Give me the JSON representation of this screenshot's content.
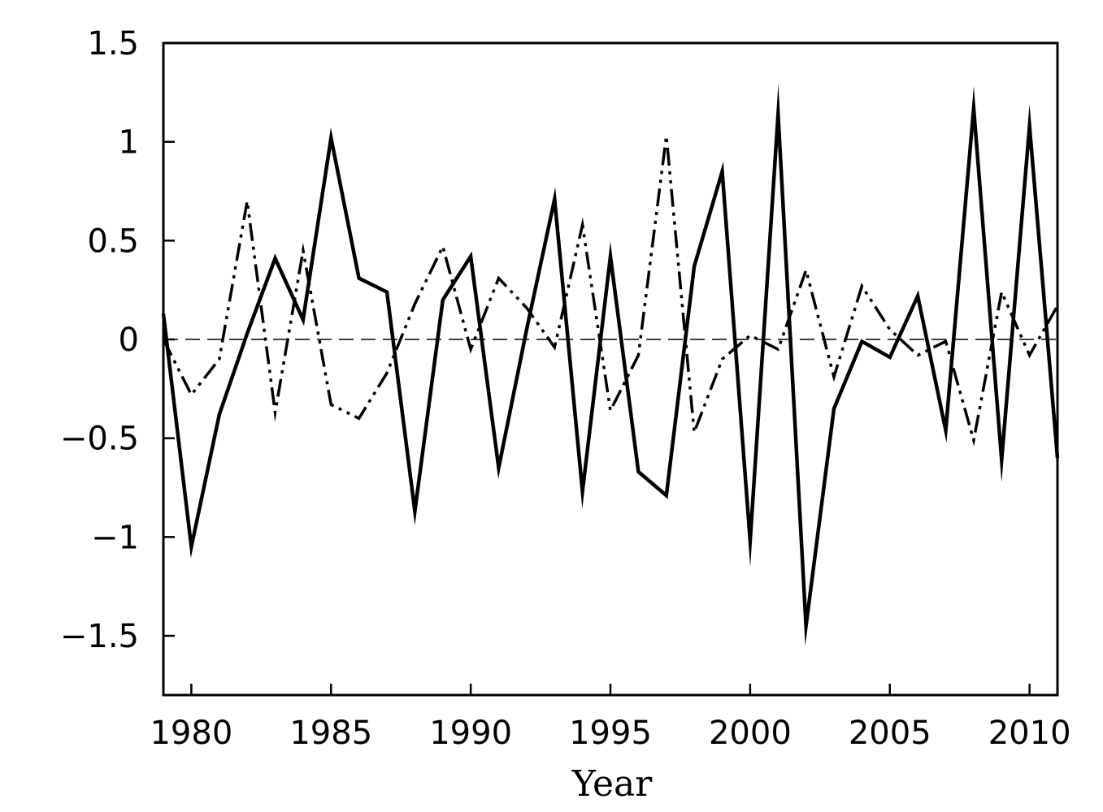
{
  "chart_data": {
    "type": "line",
    "xlabel": "Year",
    "ylabel": "",
    "title": "",
    "xlim": [
      1979,
      2011
    ],
    "ylim": [
      -1.8,
      1.5
    ],
    "xticks": [
      1980,
      1985,
      1990,
      1995,
      2000,
      2005,
      2010
    ],
    "xtick_labels": [
      "1980",
      "1985",
      "1990",
      "1995",
      "2000",
      "2005",
      "2010"
    ],
    "yticks": [
      1.5,
      1,
      0.5,
      0,
      -0.5,
      -1,
      -1.5
    ],
    "ytick_labels": [
      "1.5",
      "1",
      "0.5",
      "0",
      "−0.5",
      "−1",
      "−1.5"
    ],
    "reference_line": {
      "y": 0,
      "style": "dashed"
    },
    "grid": false,
    "legend": "none",
    "x": [
      1979,
      1980,
      1981,
      1982,
      1983,
      1984,
      1985,
      1986,
      1987,
      1988,
      1989,
      1990,
      1991,
      1992,
      1993,
      1994,
      1995,
      1996,
      1997,
      1998,
      1999,
      2000,
      2001,
      2002,
      2003,
      2004,
      2005,
      2006,
      2007,
      2008,
      2009,
      2010,
      2011
    ],
    "series": [
      {
        "style": "solid",
        "color": "#000000",
        "values": [
          0.13,
          -1.05,
          -0.38,
          0.03,
          0.41,
          0.1,
          1.02,
          0.31,
          0.24,
          -0.87,
          0.2,
          0.42,
          -0.65,
          0.05,
          0.71,
          -0.77,
          0.42,
          -0.67,
          -0.79,
          0.37,
          0.85,
          -1.02,
          1.14,
          -1.45,
          -0.35,
          -0.01,
          -0.09,
          0.22,
          -0.46,
          1.17,
          -0.61,
          1.08,
          -0.6
        ]
      },
      {
        "style": "dash-dot-dot",
        "color": "#000000",
        "values": [
          0.0,
          -0.28,
          -0.1,
          0.7,
          -0.37,
          0.45,
          -0.33,
          -0.4,
          -0.17,
          0.18,
          0.47,
          -0.05,
          0.31,
          0.16,
          -0.04,
          0.58,
          -0.36,
          -0.08,
          1.03,
          -0.47,
          -0.1,
          0.02,
          -0.05,
          0.35,
          -0.19,
          0.27,
          0.05,
          -0.08,
          -0.01,
          -0.51,
          0.24,
          -0.08,
          0.17
        ]
      }
    ]
  }
}
